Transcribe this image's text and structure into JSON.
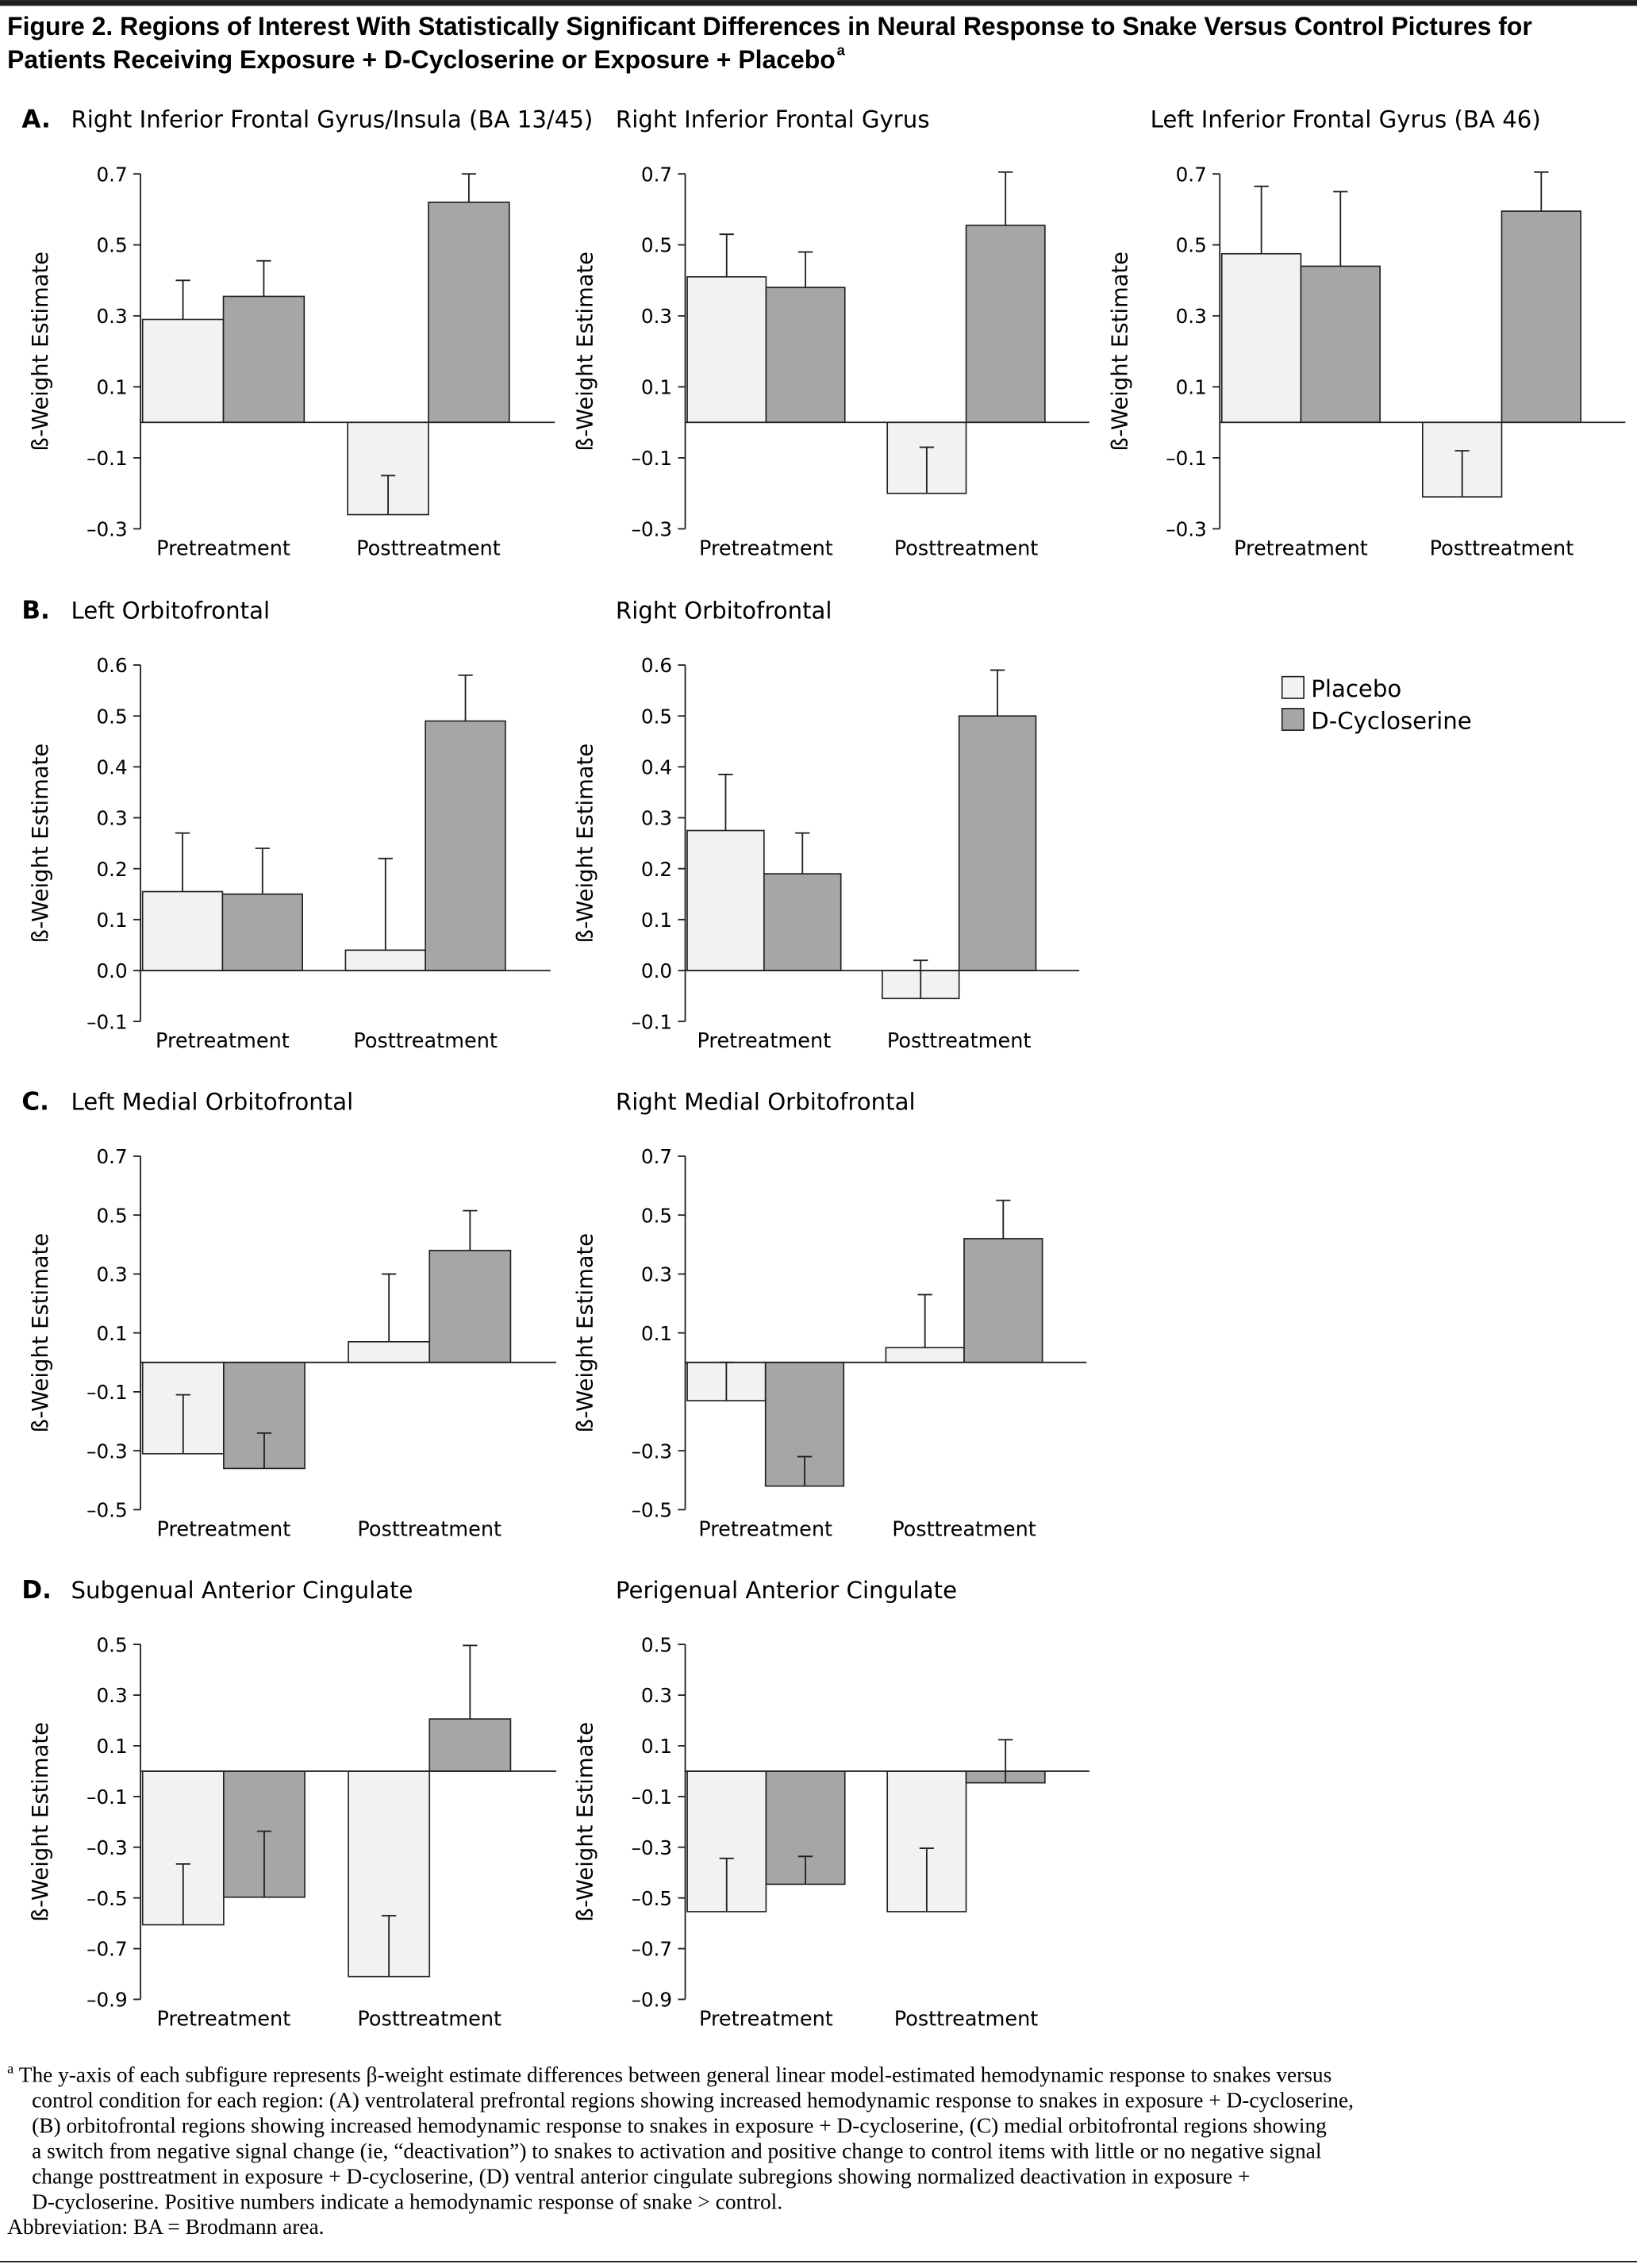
{
  "figure_title": {
    "lines": [
      "Figure 2. Regions of Interest With Statistically Significant Differences in Neural Response to Snake Versus Control Pictures for",
      "Patients Receiving Exposure + D-Cycloserine or Exposure + Placebo"
    ],
    "mark": "a"
  },
  "chart_data": [
    {
      "type": "bar",
      "panel": "A.",
      "title": "Right Inferior Frontal Gyrus/Insula (BA 13/45)",
      "ylabel": "ß-Weight Estimate",
      "categories": [
        "Pretreatment",
        "Posttreatment"
      ],
      "series": [
        {
          "name": "Placebo",
          "color": "#f2f2f2",
          "values": [
            0.29,
            -0.26
          ],
          "errors": [
            0.11,
            0.11
          ]
        },
        {
          "name": "D-Cycloserine",
          "color": "#a6a6a6",
          "values": [
            0.355,
            0.62
          ],
          "errors": [
            0.1,
            0.08
          ]
        }
      ],
      "ylim": [
        -0.3,
        0.7
      ],
      "yticks": [
        {
          "value": -0.3,
          "label": "–0.3"
        },
        {
          "value": -0.1,
          "label": "–0.1"
        },
        0.1,
        0.3,
        0.5,
        0.7
      ]
    },
    {
      "type": "bar",
      "title": "Right Inferior Frontal Gyrus",
      "ylabel": "ß-Weight Estimate",
      "categories": [
        "Pretreatment",
        "Posttreatment"
      ],
      "series": [
        {
          "name": "Placebo",
          "color": "#f2f2f2",
          "values": [
            0.41,
            -0.2
          ],
          "errors": [
            0.12,
            0.13
          ]
        },
        {
          "name": "D-Cycloserine",
          "color": "#a6a6a6",
          "values": [
            0.38,
            0.555
          ],
          "errors": [
            0.1,
            0.15
          ]
        }
      ],
      "ylim": [
        -0.3,
        0.7
      ],
      "yticks": [
        {
          "value": -0.3,
          "label": "–0.3"
        },
        {
          "value": -0.1,
          "label": "–0.1"
        },
        0.1,
        0.3,
        0.5,
        0.7
      ]
    },
    {
      "type": "bar",
      "title": "Left Inferior Frontal Gyrus (BA 46)",
      "ylabel": "ß-Weight Estimate",
      "categories": [
        "Pretreatment",
        "Posttreatment"
      ],
      "series": [
        {
          "name": "Placebo",
          "color": "#f2f2f2",
          "values": [
            0.475,
            -0.21
          ],
          "errors": [
            0.19,
            0.13
          ]
        },
        {
          "name": "D-Cycloserine",
          "color": "#a6a6a6",
          "values": [
            0.44,
            0.595
          ],
          "errors": [
            0.21,
            0.11
          ]
        }
      ],
      "ylim": [
        -0.3,
        0.7
      ],
      "yticks": [
        {
          "value": -0.3,
          "label": "–0.3"
        },
        {
          "value": -0.1,
          "label": "–0.1"
        },
        0.1,
        0.3,
        0.5,
        0.7
      ]
    },
    {
      "type": "bar",
      "panel": "B.",
      "title": "Left Orbitofrontal",
      "ylabel": "ß-Weight Estimate",
      "categories": [
        "Pretreatment",
        "Posttreatment"
      ],
      "series": [
        {
          "name": "Placebo",
          "color": "#f2f2f2",
          "values": [
            0.155,
            0.04
          ],
          "errors": [
            0.115,
            0.18
          ]
        },
        {
          "name": "D-Cycloserine",
          "color": "#a6a6a6",
          "values": [
            0.15,
            0.49
          ],
          "errors": [
            0.09,
            0.09
          ]
        }
      ],
      "ylim": [
        -0.1,
        0.6
      ],
      "yticks": [
        {
          "value": -0.1,
          "label": "–0.1"
        },
        {
          "value": 0,
          "label": "0.0"
        },
        0.1,
        0.2,
        0.3,
        0.4,
        0.5,
        0.6
      ]
    },
    {
      "type": "bar",
      "title": "Right Orbitofrontal",
      "ylabel": "ß-Weight Estimate",
      "categories": [
        "Pretreatment",
        "Posttreatment"
      ],
      "series": [
        {
          "name": "Placebo",
          "color": "#f2f2f2",
          "values": [
            0.275,
            -0.055
          ],
          "errors": [
            0.11,
            0.075
          ]
        },
        {
          "name": "D-Cycloserine",
          "color": "#a6a6a6",
          "values": [
            0.19,
            0.5
          ],
          "errors": [
            0.08,
            0.09
          ]
        }
      ],
      "ylim": [
        -0.1,
        0.6
      ],
      "yticks": [
        {
          "value": -0.1,
          "label": "–0.1"
        },
        {
          "value": 0,
          "label": "0.0"
        },
        0.1,
        0.2,
        0.3,
        0.4,
        0.5,
        0.6
      ]
    },
    {
      "type": "bar",
      "panel": "C.",
      "title": "Left Medial Orbitofrontal",
      "ylabel": "ß-Weight Estimate",
      "categories": [
        "Pretreatment",
        "Posttreatment"
      ],
      "series": [
        {
          "name": "Placebo",
          "color": "#f2f2f2",
          "values": [
            -0.31,
            0.07
          ],
          "errors": [
            0.2,
            0.23
          ]
        },
        {
          "name": "D-Cycloserine",
          "color": "#a6a6a6",
          "values": [
            -0.36,
            0.38
          ],
          "errors": [
            0.12,
            0.135
          ]
        }
      ],
      "ylim": [
        -0.5,
        0.7
      ],
      "yticks": [
        {
          "value": -0.5,
          "label": "–0.5"
        },
        {
          "value": -0.3,
          "label": "–0.3"
        },
        {
          "value": -0.1,
          "label": "–0.1"
        },
        0.1,
        0.3,
        0.5,
        0.7
      ]
    },
    {
      "type": "bar",
      "title": "Right Medial Orbitofrontal",
      "ylabel": "ß-Weight Estimate",
      "categories": [
        "Pretreatment",
        "Posttreatment"
      ],
      "series": [
        {
          "name": "Placebo",
          "color": "#f2f2f2",
          "values": [
            -0.13,
            0.05
          ],
          "errors": [
            0.13,
            0.18
          ]
        },
        {
          "name": "D-Cycloserine",
          "color": "#a6a6a6",
          "values": [
            -0.42,
            0.42
          ],
          "errors": [
            0.1,
            0.13
          ]
        }
      ],
      "ylim": [
        -0.5,
        0.7
      ],
      "yticks": [
        {
          "value": -0.5,
          "label": "–0.5"
        },
        {
          "value": -0.3,
          "label": "–0.3"
        },
        0.1,
        0.3,
        0.5,
        0.7
      ]
    },
    {
      "type": "bar",
      "panel": "D.",
      "title": "Subgenual Anterior Cingulate",
      "ylabel": "ß-Weight Estimate",
      "categories": [
        "Pretreatment",
        "Posttreatment"
      ],
      "series": [
        {
          "name": "Placebo",
          "color": "#f2f2f2",
          "values": [
            -0.606,
            -0.81
          ],
          "errors": [
            0.24,
            0.24
          ]
        },
        {
          "name": "D-Cycloserine",
          "color": "#a6a6a6",
          "values": [
            -0.497,
            0.206
          ],
          "errors": [
            0.26,
            0.29
          ]
        }
      ],
      "ylim": [
        -0.9,
        0.5
      ],
      "yticks": [
        {
          "value": -0.9,
          "label": "–0.9"
        },
        {
          "value": -0.7,
          "label": "–0.7"
        },
        {
          "value": -0.5,
          "label": "–0.5"
        },
        {
          "value": -0.3,
          "label": "–0.3"
        },
        {
          "value": -0.1,
          "label": "–0.1"
        },
        0.1,
        0.3,
        0.5
      ]
    },
    {
      "type": "bar",
      "title": "Perigenual Anterior Cingulate",
      "ylabel": "ß-Weight Estimate",
      "categories": [
        "Pretreatment",
        "Posttreatment"
      ],
      "series": [
        {
          "name": "Placebo",
          "color": "#f2f2f2",
          "values": [
            -0.554,
            -0.554
          ],
          "errors": [
            0.21,
            0.25
          ]
        },
        {
          "name": "D-Cycloserine",
          "color": "#a6a6a6",
          "values": [
            -0.446,
            -0.046
          ],
          "errors": [
            0.11,
            0.17
          ]
        }
      ],
      "ylim": [
        -0.9,
        0.5
      ],
      "yticks": [
        {
          "value": -0.9,
          "label": "–0.9"
        },
        {
          "value": -0.7,
          "label": "–0.7"
        },
        {
          "value": -0.5,
          "label": "–0.5"
        },
        {
          "value": -0.3,
          "label": "–0.3"
        },
        {
          "value": -0.1,
          "label": "–0.1"
        },
        0.1,
        0.3,
        0.5
      ]
    }
  ],
  "footnote": {
    "mark": "a",
    "lines": [
      "The y-axis of each subfigure represents β-weight estimate differences between general linear model-estimated hemodynamic response to snakes versus",
      "control condition for each region: (A) ventrolateral prefrontal regions showing increased hemodynamic response to snakes in exposure + D-cycloserine,",
      "(B) orbitofrontal regions showing increased hemodynamic response to snakes in exposure + D-cycloserine, (C) medial orbitofrontal regions showing",
      "a switch from negative signal change (ie, “deactivation”) to snakes to activation and positive change to control items with little or no negative signal",
      "change posttreatment in exposure + D-cycloserine, (D) ventral anterior cingulate subregions showing normalized deactivation in exposure +",
      "D-cycloserine. Positive numbers indicate a hemodynamic response of snake > control."
    ],
    "abbreviation": "Abbreviation: BA = Brodmann area."
  }
}
